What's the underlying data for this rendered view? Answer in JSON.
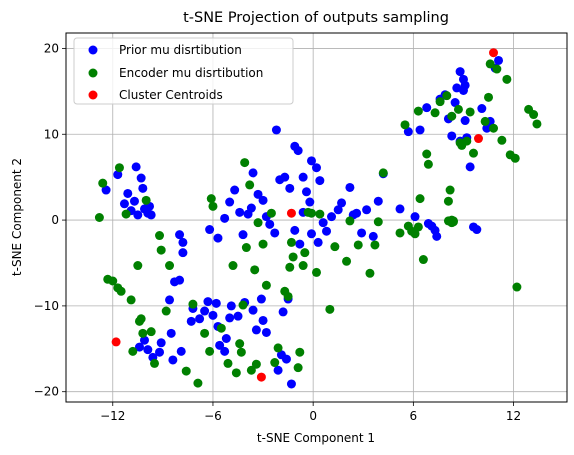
{
  "chart_data": {
    "type": "scatter",
    "title": "t-SNE Projection of outputs sampling",
    "xlabel": "t-SNE Component 1",
    "ylabel": "t-SNE Component 2",
    "xlim": [
      -14.8,
      15.2
    ],
    "ylim": [
      -21.2,
      21.8
    ],
    "xticks": [
      -12,
      -6,
      0,
      6,
      12
    ],
    "yticks": [
      -20,
      -10,
      0,
      10,
      20
    ],
    "xtick_labels": [
      "−12",
      "−6",
      "0",
      "6",
      "12"
    ],
    "ytick_labels": [
      "−20",
      "−10",
      "0",
      "10",
      "20"
    ],
    "grid": true,
    "legend_position": "top-left",
    "series": [
      {
        "name": "Prior mu disrtibution",
        "color": "#0000ff",
        "points": [
          [
            -12.4,
            3.5
          ],
          [
            -11.7,
            5.3
          ],
          [
            -11.3,
            1.9
          ],
          [
            -11.1,
            3.1
          ],
          [
            -10.9,
            1.1
          ],
          [
            -10.7,
            2.2
          ],
          [
            -10.6,
            6.2
          ],
          [
            -10.5,
            0.6
          ],
          [
            -10.3,
            4.9
          ],
          [
            -10.2,
            3.7
          ],
          [
            -10.1,
            1.3
          ],
          [
            -9.9,
            0.8
          ],
          [
            -9.8,
            1.6
          ],
          [
            -9.7,
            0.6
          ],
          [
            -10.4,
            -14.8
          ],
          [
            -10.1,
            -14.0
          ],
          [
            -9.9,
            -15.1
          ],
          [
            -9.6,
            -16.0
          ],
          [
            -9.2,
            -15.4
          ],
          [
            -9.1,
            -14.3
          ],
          [
            -8.4,
            -16.3
          ],
          [
            -7.9,
            -15.3
          ],
          [
            -8.5,
            -13.2
          ],
          [
            -8.6,
            -9.3
          ],
          [
            -8.3,
            -7.2
          ],
          [
            -8.0,
            -7.0
          ],
          [
            -7.8,
            -3.8
          ],
          [
            -8.0,
            -1.7
          ],
          [
            -7.8,
            -2.6
          ],
          [
            -7.3,
            -11.8
          ],
          [
            -7.2,
            -10.3
          ],
          [
            -6.8,
            -11.5
          ],
          [
            -6.5,
            -10.6
          ],
          [
            -6.3,
            -9.5
          ],
          [
            -6.0,
            -11.1
          ],
          [
            -5.8,
            -9.7
          ],
          [
            -5.7,
            -12.4
          ],
          [
            -5.6,
            -14.6
          ],
          [
            -5.3,
            -15.3
          ],
          [
            -5.2,
            -13.8
          ],
          [
            -5.0,
            -11.4
          ],
          [
            -4.9,
            -10.0
          ],
          [
            -4.5,
            -11.2
          ],
          [
            -4.1,
            -9.6
          ],
          [
            -3.6,
            -10.5
          ],
          [
            -3.4,
            -12.8
          ],
          [
            -3.1,
            -9.2
          ],
          [
            -3.0,
            -11.7
          ],
          [
            -2.8,
            -13.1
          ],
          [
            -2.1,
            -17.5
          ],
          [
            -1.9,
            -15.7
          ],
          [
            -1.6,
            -16.2
          ],
          [
            -1.3,
            -19.1
          ],
          [
            -1.8,
            -10.7
          ],
          [
            -1.5,
            -9.2
          ],
          [
            -6.2,
            -1.1
          ],
          [
            -5.7,
            -2.1
          ],
          [
            -5.3,
            0.2
          ],
          [
            -5.0,
            2.1
          ],
          [
            -4.7,
            3.5
          ],
          [
            -4.4,
            0.9
          ],
          [
            -4.2,
            -1.7
          ],
          [
            -3.9,
            0.7
          ],
          [
            -3.7,
            1.4
          ],
          [
            -3.6,
            5.5
          ],
          [
            -3.3,
            3.0
          ],
          [
            -3.0,
            2.3
          ],
          [
            -2.8,
            0.4
          ],
          [
            -2.6,
            -0.5
          ],
          [
            -2.3,
            -1.5
          ],
          [
            -2.0,
            4.7
          ],
          [
            -1.7,
            5.0
          ],
          [
            -1.4,
            3.7
          ],
          [
            -1.1,
            -1.2
          ],
          [
            -0.8,
            -2.8
          ],
          [
            -0.6,
            0.9
          ],
          [
            -0.4,
            3.3
          ],
          [
            -0.2,
            2.1
          ],
          [
            -2.2,
            10.5
          ],
          [
            -1.1,
            8.6
          ],
          [
            -0.9,
            8.1
          ],
          [
            -0.6,
            5.0
          ],
          [
            -0.1,
            6.9
          ],
          [
            0.2,
            6.1
          ],
          [
            0.4,
            4.6
          ],
          [
            0.6,
            -0.3
          ],
          [
            0.8,
            -1.3
          ],
          [
            1.1,
            0.4
          ],
          [
            1.5,
            1.2
          ],
          [
            1.7,
            2.0
          ],
          [
            2.2,
            3.8
          ],
          [
            2.6,
            0.8
          ],
          [
            2.9,
            -1.5
          ],
          [
            3.2,
            1.2
          ],
          [
            3.6,
            -1.9
          ],
          [
            3.9,
            2.2
          ],
          [
            4.2,
            5.4
          ],
          [
            -0.1,
            -1.6
          ],
          [
            0.3,
            -2.6
          ],
          [
            2.4,
            0.6
          ],
          [
            5.2,
            1.3
          ],
          [
            5.7,
            10.3
          ],
          [
            6.1,
            0.4
          ],
          [
            6.4,
            10.5
          ],
          [
            6.8,
            13.1
          ],
          [
            7.1,
            -0.7
          ],
          [
            7.4,
            -1.9
          ],
          [
            7.6,
            14.1
          ],
          [
            7.9,
            14.6
          ],
          [
            8.1,
            11.8
          ],
          [
            8.3,
            9.8
          ],
          [
            8.5,
            13.7
          ],
          [
            8.6,
            15.4
          ],
          [
            8.8,
            17.3
          ],
          [
            9.0,
            16.4
          ],
          [
            9.1,
            15.7
          ],
          [
            9.0,
            15.1
          ],
          [
            9.1,
            11.6
          ],
          [
            8.8,
            9.2
          ],
          [
            9.2,
            9.6
          ],
          [
            9.4,
            6.2
          ],
          [
            9.6,
            -0.8
          ],
          [
            9.8,
            -1.1
          ],
          [
            10.1,
            13.0
          ],
          [
            10.4,
            10.7
          ],
          [
            10.6,
            11.5
          ],
          [
            10.9,
            17.7
          ],
          [
            11.1,
            18.6
          ],
          [
            6.9,
            -0.4
          ],
          [
            7.3,
            -1.2
          ]
        ]
      },
      {
        "name": "Encoder mu disrtibution",
        "color": "#008000",
        "points": [
          [
            -12.8,
            0.3
          ],
          [
            -12.6,
            4.3
          ],
          [
            -12.3,
            -6.9
          ],
          [
            -12.0,
            -7.1
          ],
          [
            -11.7,
            -7.9
          ],
          [
            -11.5,
            -8.3
          ],
          [
            -11.6,
            6.1
          ],
          [
            -11.2,
            0.7
          ],
          [
            -10.9,
            -9.3
          ],
          [
            -10.8,
            -15.3
          ],
          [
            -10.5,
            -5.3
          ],
          [
            -10.4,
            -11.8
          ],
          [
            -10.3,
            -11.5
          ],
          [
            -10.2,
            -13.2
          ],
          [
            -10.0,
            2.3
          ],
          [
            -9.7,
            -13.0
          ],
          [
            -9.5,
            -16.7
          ],
          [
            -9.2,
            -1.8
          ],
          [
            -9.1,
            -3.5
          ],
          [
            -8.8,
            -10.6
          ],
          [
            -8.6,
            -5.3
          ],
          [
            -7.6,
            -17.6
          ],
          [
            -7.2,
            -9.8
          ],
          [
            -6.9,
            -19.0
          ],
          [
            -6.5,
            -13.2
          ],
          [
            -6.2,
            -15.3
          ],
          [
            -6.0,
            1.6
          ],
          [
            -6.1,
            2.5
          ],
          [
            -5.5,
            -12.6
          ],
          [
            -5.1,
            -16.7
          ],
          [
            -4.8,
            -5.3
          ],
          [
            -4.6,
            -17.8
          ],
          [
            -4.4,
            -14.4
          ],
          [
            -4.3,
            -15.4
          ],
          [
            -4.2,
            -9.9
          ],
          [
            -4.0,
            -3.2
          ],
          [
            -3.7,
            -17.5
          ],
          [
            -3.4,
            -16.8
          ],
          [
            -4.1,
            6.7
          ],
          [
            -3.8,
            4.1
          ],
          [
            -3.5,
            -5.8
          ],
          [
            -3.3,
            -0.3
          ],
          [
            -3.0,
            -2.8
          ],
          [
            -2.8,
            -7.6
          ],
          [
            -2.5,
            0.8
          ],
          [
            -2.3,
            -16.6
          ],
          [
            -2.1,
            -14.9
          ],
          [
            -1.7,
            -8.3
          ],
          [
            -1.5,
            -8.9
          ],
          [
            -1.4,
            -5.5
          ],
          [
            -1.2,
            -4.3
          ],
          [
            -0.8,
            -15.4
          ],
          [
            -0.9,
            -17.2
          ],
          [
            -0.6,
            -5.3
          ],
          [
            -0.3,
            0.9
          ],
          [
            -0.1,
            0.8
          ],
          [
            0.2,
            -6.1
          ],
          [
            0.4,
            0.7
          ],
          [
            1.0,
            -10.4
          ],
          [
            -1.3,
            -2.6
          ],
          [
            -0.5,
            -3.8
          ],
          [
            1.3,
            -3.1
          ],
          [
            2.0,
            -4.8
          ],
          [
            2.2,
            -0.1
          ],
          [
            2.7,
            -2.9
          ],
          [
            3.4,
            -6.2
          ],
          [
            3.7,
            -2.9
          ],
          [
            3.9,
            -0.2
          ],
          [
            4.2,
            5.5
          ],
          [
            5.5,
            11.1
          ],
          [
            5.7,
            -0.7
          ],
          [
            6.1,
            -1.6
          ],
          [
            6.3,
            12.7
          ],
          [
            6.6,
            -4.6
          ],
          [
            6.8,
            7.7
          ],
          [
            6.9,
            6.5
          ],
          [
            7.3,
            12.5
          ],
          [
            7.6,
            13.8
          ],
          [
            8.0,
            14.5
          ],
          [
            8.3,
            12.1
          ],
          [
            8.7,
            12.9
          ],
          [
            8.8,
            9.0
          ],
          [
            8.9,
            8.7
          ],
          [
            9.2,
            9.2
          ],
          [
            9.4,
            12.6
          ],
          [
            10.3,
            11.5
          ],
          [
            10.6,
            18.2
          ],
          [
            10.8,
            10.7
          ],
          [
            11.0,
            17.6
          ],
          [
            11.3,
            9.3
          ],
          [
            11.6,
            16.4
          ],
          [
            11.8,
            7.6
          ],
          [
            12.1,
            7.2
          ],
          [
            12.9,
            12.9
          ],
          [
            13.2,
            12.3
          ],
          [
            13.4,
            11.2
          ],
          [
            6.4,
            2.5
          ],
          [
            5.9,
            -1.3
          ],
          [
            5.2,
            -1.5
          ],
          [
            10.5,
            14.3
          ],
          [
            12.2,
            -7.8
          ],
          [
            9.6,
            7.8
          ],
          [
            8.1,
            2.2
          ],
          [
            8.1,
            -0.1
          ],
          [
            8.2,
            3.5
          ],
          [
            8.3,
            -0.3
          ],
          [
            8.4,
            -0.1
          ],
          [
            8.3,
            0.0
          ],
          [
            8.4,
            -0.2
          ],
          [
            6.3,
            -0.8
          ]
        ]
      },
      {
        "name": "Cluster Centroids",
        "color": "#ff0000",
        "points": [
          [
            -11.8,
            -14.2
          ],
          [
            -3.1,
            -18.3
          ],
          [
            -1.3,
            0.8
          ],
          [
            9.9,
            9.5
          ],
          [
            10.8,
            19.5
          ]
        ]
      }
    ]
  }
}
